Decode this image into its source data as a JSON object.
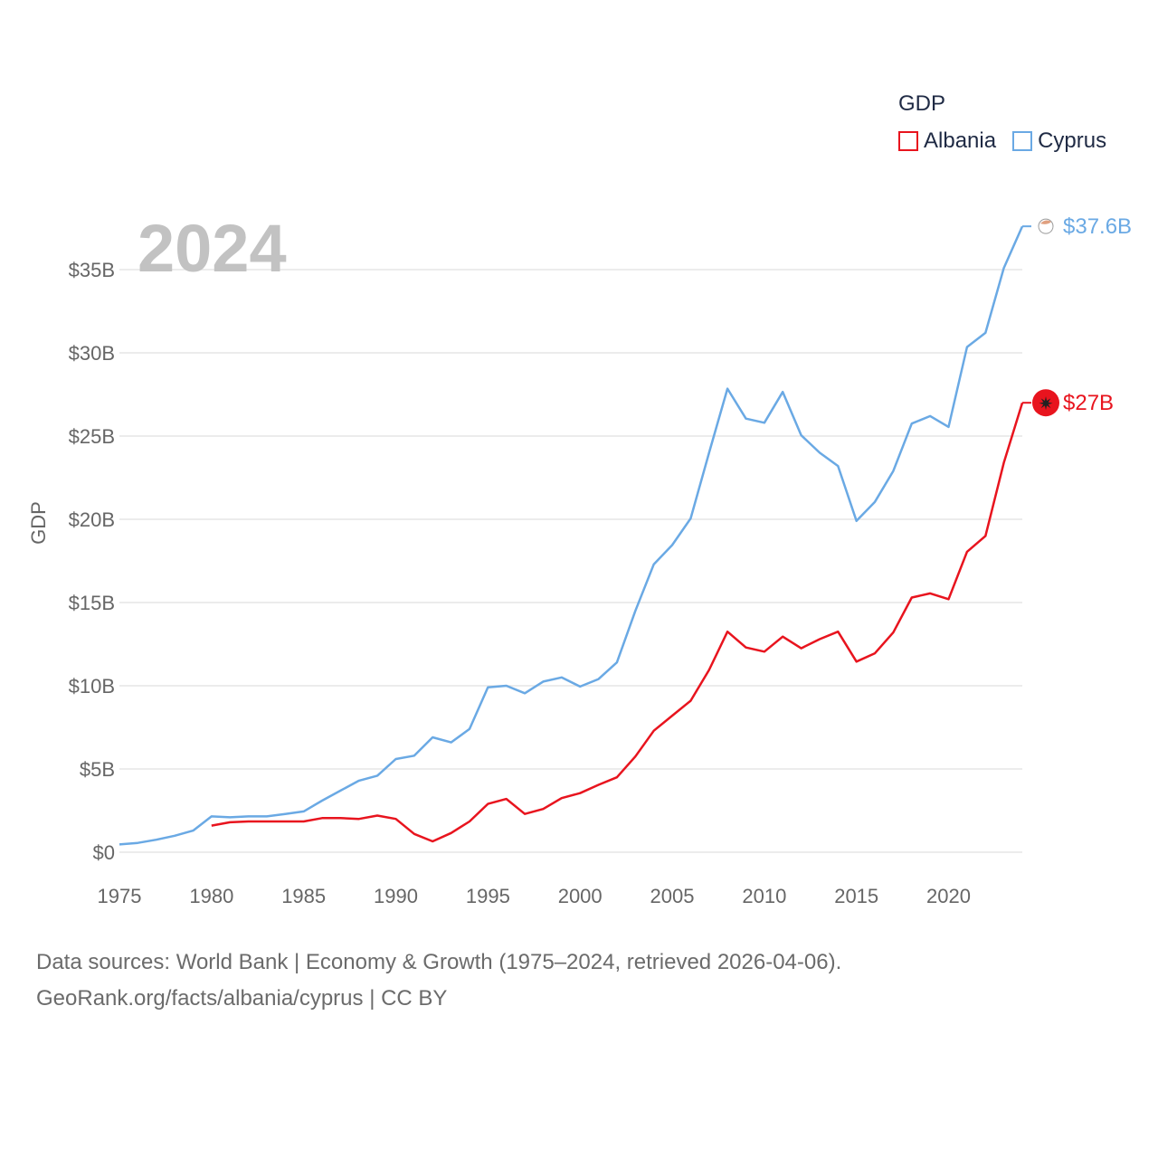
{
  "legend": {
    "title": "GDP",
    "items": [
      {
        "label": "Albania",
        "color": "#e8141e"
      },
      {
        "label": "Cyprus",
        "color": "#6aa9e4"
      }
    ]
  },
  "year_label": "2024",
  "source": {
    "line1": "Data sources: World Bank | Economy & Growth (1975–2024, retrieved 2026-04-06).",
    "line2": "GeoRank.org/facts/albania/cyprus | CC BY"
  },
  "chart_data": {
    "type": "line",
    "title": "GDP",
    "xlabel": "",
    "ylabel": "GDP",
    "xlim": [
      1975,
      2024
    ],
    "ylim": [
      0,
      37.6
    ],
    "x_ticks": [
      1975,
      1980,
      1985,
      1990,
      1995,
      2000,
      2005,
      2010,
      2015,
      2020
    ],
    "y_ticks": [
      {
        "value": 0,
        "label": "$0"
      },
      {
        "value": 5,
        "label": "$5B"
      },
      {
        "value": 10,
        "label": "$10B"
      },
      {
        "value": 15,
        "label": "$15B"
      },
      {
        "value": 20,
        "label": "$20B"
      },
      {
        "value": 25,
        "label": "$25B"
      },
      {
        "value": 30,
        "label": "$30B"
      },
      {
        "value": 35,
        "label": "$35B"
      }
    ],
    "grid": true,
    "legend_position": "top-right",
    "units": "billion USD",
    "series": [
      {
        "name": "Cyprus",
        "color": "#6aa9e4",
        "end_label": "$37.6B",
        "x": [
          1975,
          1976,
          1977,
          1978,
          1979,
          1980,
          1981,
          1982,
          1983,
          1984,
          1985,
          1986,
          1987,
          1988,
          1989,
          1990,
          1991,
          1992,
          1993,
          1994,
          1995,
          1996,
          1997,
          1998,
          1999,
          2000,
          2001,
          2002,
          2003,
          2004,
          2005,
          2006,
          2007,
          2008,
          2009,
          2010,
          2011,
          2012,
          2013,
          2014,
          2015,
          2016,
          2017,
          2018,
          2019,
          2020,
          2021,
          2022,
          2023,
          2024
        ],
        "values": [
          0.47,
          0.56,
          0.75,
          0.99,
          1.3,
          2.15,
          2.1,
          2.15,
          2.15,
          2.3,
          2.45,
          3.1,
          3.7,
          4.3,
          4.6,
          5.6,
          5.8,
          6.9,
          6.6,
          7.4,
          9.9,
          10.0,
          9.55,
          10.25,
          10.5,
          9.95,
          10.4,
          11.4,
          14.5,
          17.3,
          18.45,
          20.05,
          24.0,
          27.85,
          26.05,
          25.8,
          27.65,
          25.05,
          24.0,
          23.2,
          19.9,
          21.05,
          22.9,
          25.75,
          26.2,
          25.55,
          30.35,
          31.2,
          35.1,
          37.6
        ]
      },
      {
        "name": "Albania",
        "color": "#e8141e",
        "end_label": "$27B",
        "x": [
          1980,
          1981,
          1982,
          1983,
          1984,
          1985,
          1986,
          1987,
          1988,
          1989,
          1990,
          1991,
          1992,
          1993,
          1994,
          1995,
          1996,
          1997,
          1998,
          1999,
          2000,
          2001,
          2002,
          2003,
          2004,
          2005,
          2006,
          2007,
          2008,
          2009,
          2010,
          2011,
          2012,
          2013,
          2014,
          2015,
          2016,
          2017,
          2018,
          2019,
          2020,
          2021,
          2022,
          2023,
          2024
        ],
        "values": [
          1.6,
          1.8,
          1.85,
          1.85,
          1.85,
          1.85,
          2.05,
          2.05,
          2.0,
          2.2,
          2.0,
          1.1,
          0.65,
          1.15,
          1.85,
          2.9,
          3.2,
          2.3,
          2.6,
          3.25,
          3.55,
          4.05,
          4.5,
          5.75,
          7.3,
          8.2,
          9.1,
          10.95,
          13.25,
          12.3,
          12.05,
          12.95,
          12.25,
          12.8,
          13.25,
          11.45,
          11.95,
          13.2,
          15.3,
          15.55,
          15.2,
          18.05,
          19.0,
          23.4,
          27.0
        ]
      }
    ]
  }
}
